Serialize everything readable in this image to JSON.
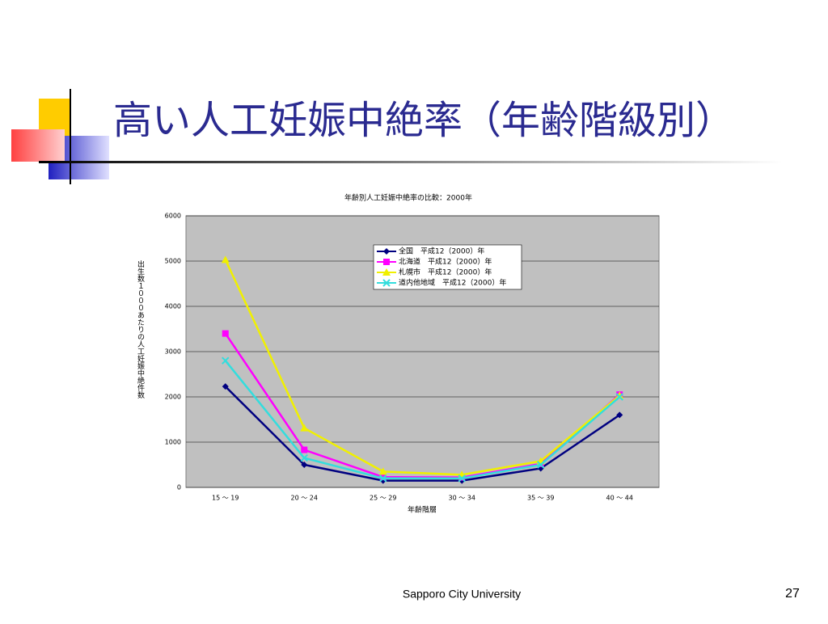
{
  "title": "高い人工妊娠中絶率（年齢階級別）",
  "footer": "Sapporo City University",
  "page_number": "27",
  "chart_data": {
    "type": "line",
    "title": "年齢別人工妊娠中絶率の比較：2000年",
    "x_label": "年齢階層",
    "y_label": "出生数１０００あたりの人工妊娠中絶件数",
    "categories": [
      "15 ～ 19",
      "20 ～ 24",
      "25 ～ 29",
      "30 ～ 34",
      "35 ～ 39",
      "40 ～ 44"
    ],
    "series": [
      {
        "name": "全国　平成12（2000）年",
        "color": "#000080",
        "marker": "diamond",
        "values": [
          2230,
          500,
          150,
          150,
          420,
          1600
        ]
      },
      {
        "name": "北海道　平成12（2000）年",
        "color": "#ff00ff",
        "marker": "square",
        "values": [
          3400,
          830,
          230,
          220,
          520,
          2050
        ]
      },
      {
        "name": "札幌市　平成12（2000）年",
        "color": "#f0f000",
        "marker": "triangle",
        "values": [
          5030,
          1310,
          350,
          280,
          580,
          2030
        ]
      },
      {
        "name": "道内他地域　平成12（2000）年",
        "color": "#33dddd",
        "marker": "x",
        "values": [
          2800,
          650,
          200,
          200,
          500,
          2000
        ]
      }
    ],
    "ylim": [
      0,
      6000
    ],
    "yticks": [
      0,
      1000,
      2000,
      3000,
      4000,
      5000,
      6000
    ],
    "grid": true,
    "legend": "top-right"
  }
}
